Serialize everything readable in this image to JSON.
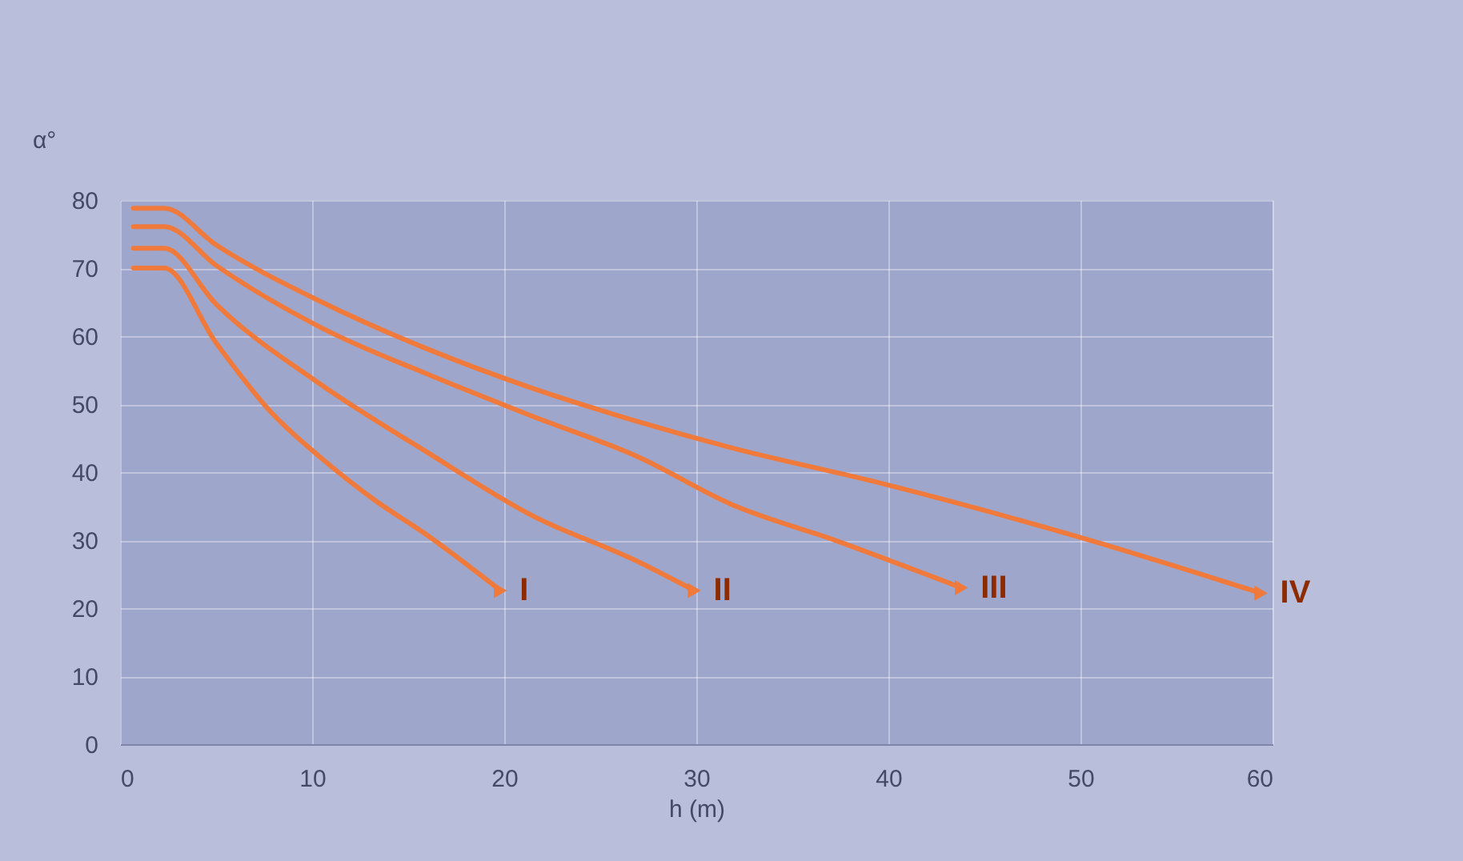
{
  "chart_data": {
    "type": "line",
    "xlabel": "h (m)",
    "ylabel": "α°",
    "xlim": [
      0,
      60
    ],
    "ylim": [
      0,
      80
    ],
    "xticks": [
      0,
      10,
      20,
      30,
      40,
      50,
      60
    ],
    "yticks": [
      0,
      10,
      20,
      30,
      40,
      50,
      60,
      70,
      80
    ],
    "grid": true,
    "line_style": "solid",
    "series": [
      {
        "name": "I",
        "color": "#f07a3c",
        "x": [
          0.7,
          2.3,
          5,
          7.8,
          10.5,
          13.2,
          16,
          19.8
        ],
        "values": [
          70,
          70,
          59,
          49,
          42,
          36,
          30.7,
          22.6
        ]
      },
      {
        "name": "II",
        "color": "#f07a3c",
        "x": [
          0.7,
          2.3,
          5,
          10.5,
          16,
          21.4,
          27,
          29.9
        ],
        "values": [
          72.9,
          72.9,
          64.7,
          52.8,
          42.9,
          33.7,
          26.8,
          22.6
        ]
      },
      {
        "name": "III",
        "color": "#f07a3c",
        "x": [
          0.7,
          2.3,
          5,
          10.5,
          16,
          21.4,
          27,
          31.8,
          37.3,
          43.8
        ],
        "values": [
          76.1,
          76.1,
          70.4,
          61.2,
          54.4,
          48.3,
          42.2,
          35.3,
          29.9,
          23
        ]
      },
      {
        "name": "IV",
        "color": "#f07a3c",
        "x": [
          0.7,
          2.3,
          5,
          10.5,
          16,
          21.4,
          27,
          31.8,
          39.7,
          50.1,
          59.4
        ],
        "values": [
          78.8,
          78.8,
          73.4,
          65,
          58.1,
          52.4,
          47.4,
          43.6,
          38.3,
          30.3,
          22.2
        ]
      }
    ]
  }
}
